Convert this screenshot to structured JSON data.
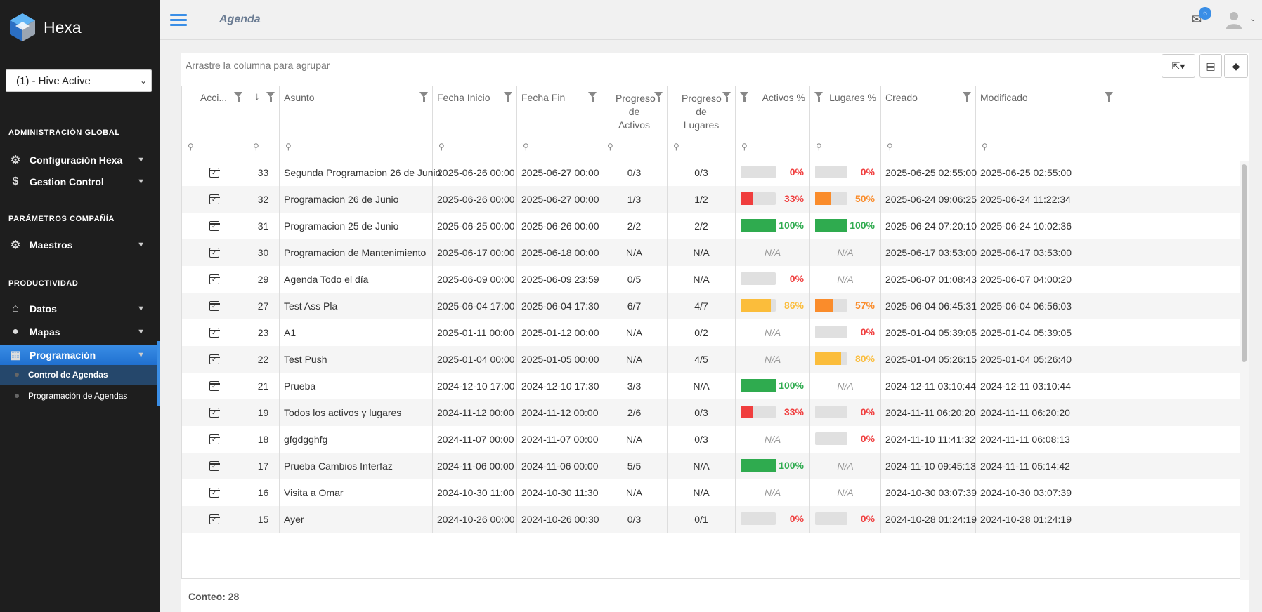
{
  "brand": {
    "name": "Hexa"
  },
  "company_select": {
    "value": "(1) - Hive Active"
  },
  "sidebar": {
    "sections": [
      {
        "title": "ADMINISTRACIÓN GLOBAL"
      },
      {
        "title": "PARÁMETROS COMPAÑÍA"
      },
      {
        "title": "PRODUCTIVIDAD"
      }
    ],
    "items": [
      {
        "label": "Configuración Hexa",
        "icon": "gear-icon"
      },
      {
        "label": "Gestion Control",
        "icon": "dollar-icon"
      },
      {
        "label": "Maestros",
        "icon": "gears-icon"
      },
      {
        "label": "Datos",
        "icon": "home-icon"
      },
      {
        "label": "Mapas",
        "icon": "map-pin-icon"
      },
      {
        "label": "Programación",
        "icon": "calendar-icon"
      }
    ],
    "subitems": [
      {
        "label": "Control de Agendas"
      },
      {
        "label": "Programación de Agendas"
      }
    ]
  },
  "header": {
    "title": "Agenda",
    "notifications": "6"
  },
  "toolbar": {
    "group_hint": "Arrastre la columna para agrupar"
  },
  "columns": [
    "Acci...",
    "",
    "Asunto",
    "Fecha Inicio",
    "Fecha Fin",
    "Progreso de Activos",
    "Progreso de Lugares",
    "Activos %",
    "Lugares %",
    "Creado",
    "Modificado"
  ],
  "rows": [
    {
      "id": "33",
      "asunto": "Segunda Programacion 26 de Junio",
      "inicio": "2025-06-26 00:00",
      "fin": "2025-06-27 00:00",
      "pa": "0/3",
      "pl": "0/3",
      "ap": 0,
      "ap_label": "0%",
      "lp": 0,
      "lp_label": "0%",
      "creado": "2025-06-25 02:55:00",
      "modificado": "2025-06-25 02:55:00"
    },
    {
      "id": "32",
      "asunto": "Programacion 26 de Junio",
      "inicio": "2025-06-26 00:00",
      "fin": "2025-06-27 00:00",
      "pa": "1/3",
      "pl": "1/2",
      "ap": 33,
      "ap_label": "33%",
      "lp": 50,
      "lp_label": "50%",
      "creado": "2025-06-24 09:06:25",
      "modificado": "2025-06-24 11:22:34"
    },
    {
      "id": "31",
      "asunto": "Programacion 25 de Junio",
      "inicio": "2025-06-25 00:00",
      "fin": "2025-06-26 00:00",
      "pa": "2/2",
      "pl": "2/2",
      "ap": 100,
      "ap_label": "100%",
      "lp": 100,
      "lp_label": "100%",
      "creado": "2025-06-24 07:20:10",
      "modificado": "2025-06-24 10:02:36"
    },
    {
      "id": "30",
      "asunto": "Programacion de Mantenimiento",
      "inicio": "2025-06-17 00:00",
      "fin": "2025-06-18 00:00",
      "pa": "N/A",
      "pl": "N/A",
      "ap": null,
      "ap_label": "N/A",
      "lp": null,
      "lp_label": "N/A",
      "creado": "2025-06-17 03:53:00",
      "modificado": "2025-06-17 03:53:00"
    },
    {
      "id": "29",
      "asunto": "Agenda Todo el día",
      "inicio": "2025-06-09 00:00",
      "fin": "2025-06-09 23:59",
      "pa": "0/5",
      "pl": "N/A",
      "ap": 0,
      "ap_label": "0%",
      "lp": null,
      "lp_label": "N/A",
      "creado": "2025-06-07 01:08:43",
      "modificado": "2025-06-07 04:00:20"
    },
    {
      "id": "27",
      "asunto": "Test Ass Pla",
      "inicio": "2025-06-04 17:00",
      "fin": "2025-06-04 17:30",
      "pa": "6/7",
      "pl": "4/7",
      "ap": 86,
      "ap_label": "86%",
      "lp": 57,
      "lp_label": "57%",
      "creado": "2025-06-04 06:45:31",
      "modificado": "2025-06-04 06:56:03"
    },
    {
      "id": "23",
      "asunto": "A1",
      "inicio": "2025-01-11 00:00",
      "fin": "2025-01-12 00:00",
      "pa": "N/A",
      "pl": "0/2",
      "ap": null,
      "ap_label": "N/A",
      "lp": 0,
      "lp_label": "0%",
      "creado": "2025-01-04 05:39:05",
      "modificado": "2025-01-04 05:39:05"
    },
    {
      "id": "22",
      "asunto": "Test Push",
      "inicio": "2025-01-04 00:00",
      "fin": "2025-01-05 00:00",
      "pa": "N/A",
      "pl": "4/5",
      "ap": null,
      "ap_label": "N/A",
      "lp": 80,
      "lp_label": "80%",
      "creado": "2025-01-04 05:26:15",
      "modificado": "2025-01-04 05:26:40"
    },
    {
      "id": "21",
      "asunto": "Prueba",
      "inicio": "2024-12-10 17:00",
      "fin": "2024-12-10 17:30",
      "pa": "3/3",
      "pl": "N/A",
      "ap": 100,
      "ap_label": "100%",
      "lp": null,
      "lp_label": "N/A",
      "creado": "2024-12-11 03:10:44",
      "modificado": "2024-12-11 03:10:44"
    },
    {
      "id": "19",
      "asunto": "Todos los activos y lugares",
      "inicio": "2024-11-12 00:00",
      "fin": "2024-11-12 00:00",
      "pa": "2/6",
      "pl": "0/3",
      "ap": 33,
      "ap_label": "33%",
      "lp": 0,
      "lp_label": "0%",
      "creado": "2024-11-11 06:20:20",
      "modificado": "2024-11-11 06:20:20"
    },
    {
      "id": "18",
      "asunto": "gfgdgghfg",
      "inicio": "2024-11-07 00:00",
      "fin": "2024-11-07 00:00",
      "pa": "N/A",
      "pl": "0/3",
      "ap": null,
      "ap_label": "N/A",
      "lp": 0,
      "lp_label": "0%",
      "creado": "2024-11-10 11:41:32",
      "modificado": "2024-11-11 06:08:13"
    },
    {
      "id": "17",
      "asunto": "Prueba Cambios Interfaz",
      "inicio": "2024-11-06 00:00",
      "fin": "2024-11-06 00:00",
      "pa": "5/5",
      "pl": "N/A",
      "ap": 100,
      "ap_label": "100%",
      "lp": null,
      "lp_label": "N/A",
      "creado": "2024-11-10 09:45:13",
      "modificado": "2024-11-11 05:14:42"
    },
    {
      "id": "16",
      "asunto": "Visita a Omar",
      "inicio": "2024-10-30 11:00",
      "fin": "2024-10-30 11:30",
      "pa": "N/A",
      "pl": "N/A",
      "ap": null,
      "ap_label": "N/A",
      "lp": null,
      "lp_label": "N/A",
      "creado": "2024-10-30 03:07:39",
      "modificado": "2024-10-30 03:07:39"
    },
    {
      "id": "15",
      "asunto": "Ayer",
      "inicio": "2024-10-26 00:00",
      "fin": "2024-10-26 00:30",
      "pa": "0/3",
      "pl": "0/1",
      "ap": 0,
      "ap_label": "0%",
      "lp": 0,
      "lp_label": "0%",
      "creado": "2024-10-28 01:24:19",
      "modificado": "2024-10-28 01:24:19"
    }
  ],
  "footer": {
    "count": "Conteo: 28"
  },
  "colors": {
    "accent": "#3a8ee6",
    "red": "#f03e3e",
    "orange": "#fa8c2b",
    "yellow": "#fbbd3b",
    "green": "#2fab4f"
  }
}
